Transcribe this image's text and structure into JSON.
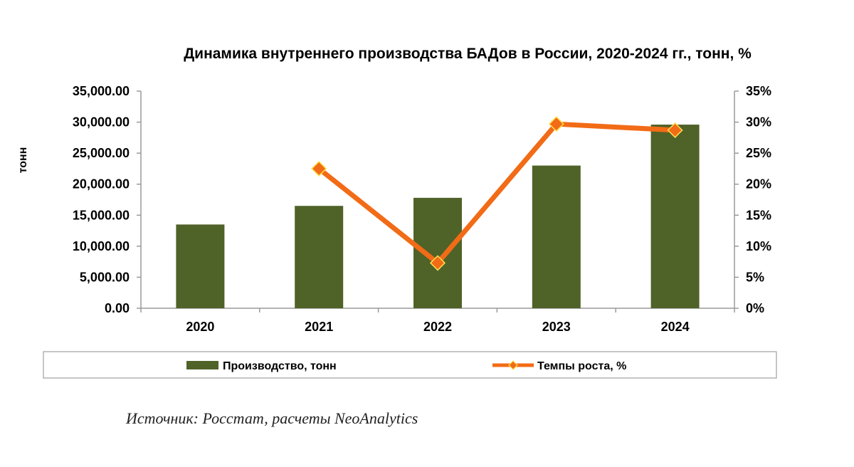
{
  "chart_data": {
    "type": "bar",
    "title": "Динамика внутреннего производства БАДов в России, 2020-2024 гг., тонн, %",
    "ylabel": "тонн",
    "categories": [
      "2020",
      "2021",
      "2022",
      "2023",
      "2024"
    ],
    "ylim": [
      0,
      35000
    ],
    "y2lim": [
      0,
      0.35
    ],
    "y_ticks": [
      "0.00",
      "5,000.00",
      "10,000.00",
      "15,000.00",
      "20,000.00",
      "25,000.00",
      "30,000.00",
      "35,000.00"
    ],
    "y2_ticks": [
      "0%",
      "5%",
      "10%",
      "15%",
      "20%",
      "25%",
      "30%",
      "35%"
    ],
    "series": [
      {
        "name": "Производство, тонн",
        "type": "bar",
        "axis": "left",
        "values": [
          13500,
          16500,
          17800,
          23000,
          29600
        ],
        "color": "#4f6228"
      },
      {
        "name": "Темпы роста, %",
        "type": "line",
        "axis": "right",
        "values": [
          null,
          0.225,
          0.073,
          0.297,
          0.287
        ],
        "color": "#f26b16",
        "marker_color": "#f26b16",
        "marker_edge": "#ffe14d"
      }
    ],
    "legend_position": "bottom",
    "grid": false
  },
  "source_note": "Источник: Росстат, расчеты NeoAnalytics"
}
